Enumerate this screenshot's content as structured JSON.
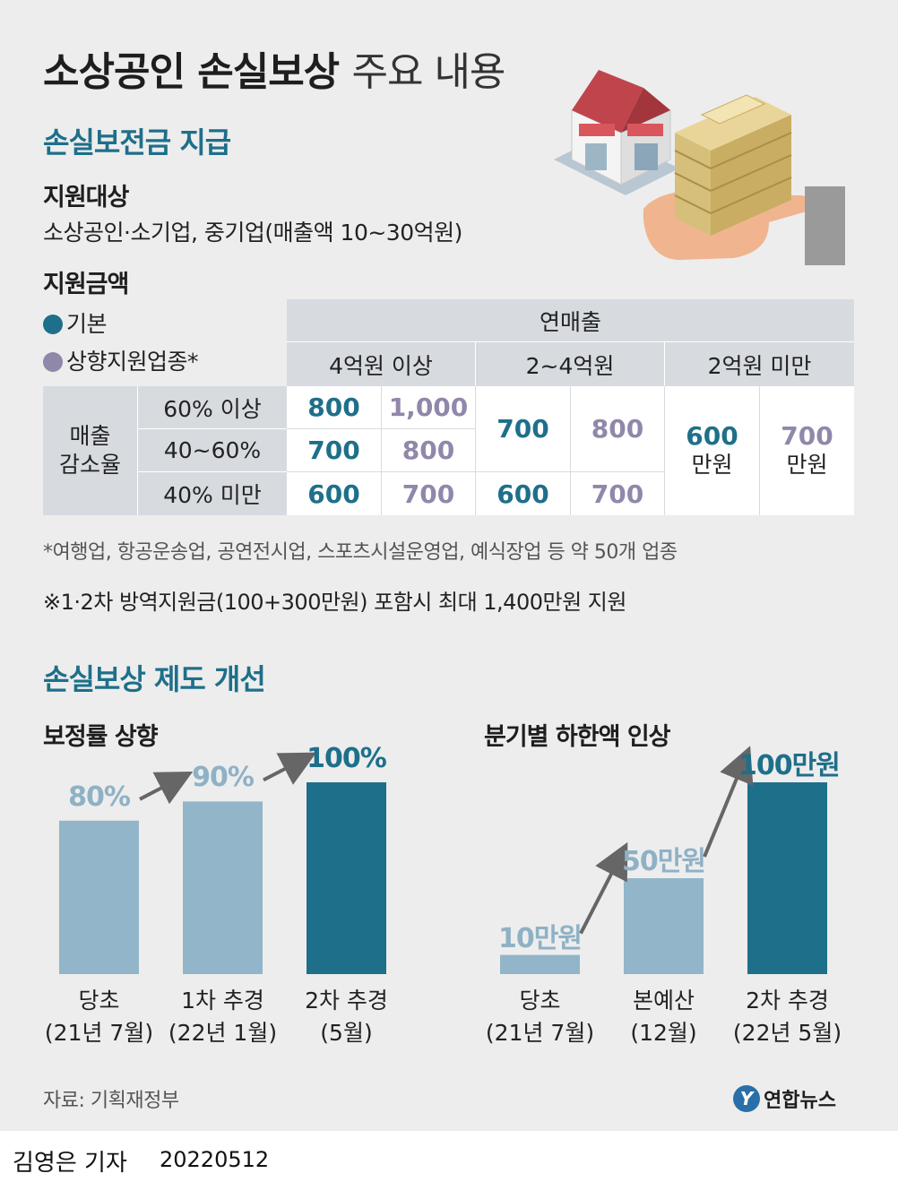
{
  "header": {
    "title_bold": "소상공인 손실보상",
    "title_light": "주요 내용"
  },
  "section1": {
    "title": "손실보전금 지급",
    "target_heading": "지원대상",
    "target_text": "소상공인·소기업, 중기업(매출액 10~30억원)",
    "amount_heading": "지원금액",
    "legend_basic": "기본",
    "legend_special": "상향지원업종*",
    "colors": {
      "basic": "#1e6f8a",
      "special": "#9187aa"
    }
  },
  "table": {
    "revenue_header": "연매출",
    "revenue_groups": [
      "4억원 이상",
      "2~4억원",
      "2억원 미만"
    ],
    "row_group_label_1": "매출",
    "row_group_label_2": "감소율",
    "rows": [
      "60% 이상",
      "40~60%",
      "40% 미만"
    ],
    "g1": {
      "r1_basic": "800",
      "r1_special": "1,000",
      "r2_basic": "700",
      "r2_special": "800",
      "r3_basic": "600",
      "r3_special": "700"
    },
    "g2": {
      "r12_basic": "700",
      "r12_special": "800",
      "r3_basic": "600",
      "r3_special": "700"
    },
    "g3": {
      "basic": "600",
      "special": "700",
      "unit": "만원"
    }
  },
  "notes": {
    "note1": "*여행업, 항공운송업, 공연전시업, 스포츠시설운영업, 예식장업 등 약 50개 업종",
    "note2": "※1·2차 방역지원금(100+300만원) 포함시 최대 1,400만원 지원"
  },
  "section2": {
    "title": "손실보상 제도 개선"
  },
  "chart_data": [
    {
      "type": "bar",
      "title": "보정률 상향",
      "categories": [
        "당초 (21년 7월)",
        "1차 추경 (22년 1월)",
        "2차 추경 (5월)"
      ],
      "category_lines": [
        [
          "당초",
          "(21년 7월)"
        ],
        [
          "1차 추경",
          "(22년 1월)"
        ],
        [
          "2차 추경",
          "(5월)"
        ]
      ],
      "values": [
        80,
        90,
        100
      ],
      "labels": [
        "80%",
        "90%",
        "100%"
      ],
      "colors": [
        "#92b5c9",
        "#92b5c9",
        "#1e6f8a"
      ],
      "ylim": [
        0,
        100
      ]
    },
    {
      "type": "bar",
      "title": "분기별 하한액 인상",
      "categories": [
        "당초 (21년 7월)",
        "본예산 (12월)",
        "2차 추경 (22년 5월)"
      ],
      "category_lines": [
        [
          "당초",
          "(21년 7월)"
        ],
        [
          "본예산",
          "(12월)"
        ],
        [
          "2차 추경",
          "(22년 5월)"
        ]
      ],
      "values": [
        10,
        50,
        100
      ],
      "labels": [
        "10만원",
        "50만원",
        "100만원"
      ],
      "colors": [
        "#92b5c9",
        "#92b5c9",
        "#1e6f8a"
      ],
      "ylim": [
        0,
        100
      ]
    }
  ],
  "source": "자료: 기획재정부",
  "logo": {
    "mark": "Y",
    "text": "연합뉴스"
  },
  "byline": {
    "name": "김영은 기자",
    "date": "20220512"
  }
}
